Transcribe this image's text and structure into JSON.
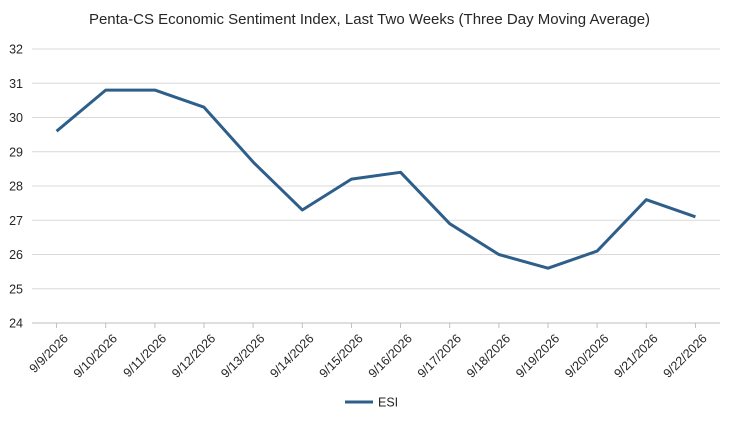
{
  "chart_data": {
    "type": "line",
    "title": "Penta-CS Economic Sentiment Index, Last Two Weeks (Three Day Moving Average)",
    "xlabel": "",
    "ylabel": "",
    "categories": [
      "9/9/2026",
      "9/10/2026",
      "9/11/2026",
      "9/12/2026",
      "9/13/2026",
      "9/14/2026",
      "9/15/2026",
      "9/16/2026",
      "9/17/2026",
      "9/18/2026",
      "9/19/2026",
      "9/20/2026",
      "9/21/2026",
      "9/22/2026"
    ],
    "series": [
      {
        "name": "ESI",
        "color": "#2e5f8a",
        "values": [
          29.6,
          30.8,
          30.8,
          30.3,
          28.7,
          27.3,
          28.2,
          28.4,
          26.9,
          26.0,
          25.6,
          26.1,
          27.6,
          27.1
        ]
      }
    ],
    "ylim": [
      24,
      32
    ],
    "yticks": [
      24,
      25,
      26,
      27,
      28,
      29,
      30,
      31,
      32
    ],
    "grid": true,
    "legend": "bottom"
  }
}
